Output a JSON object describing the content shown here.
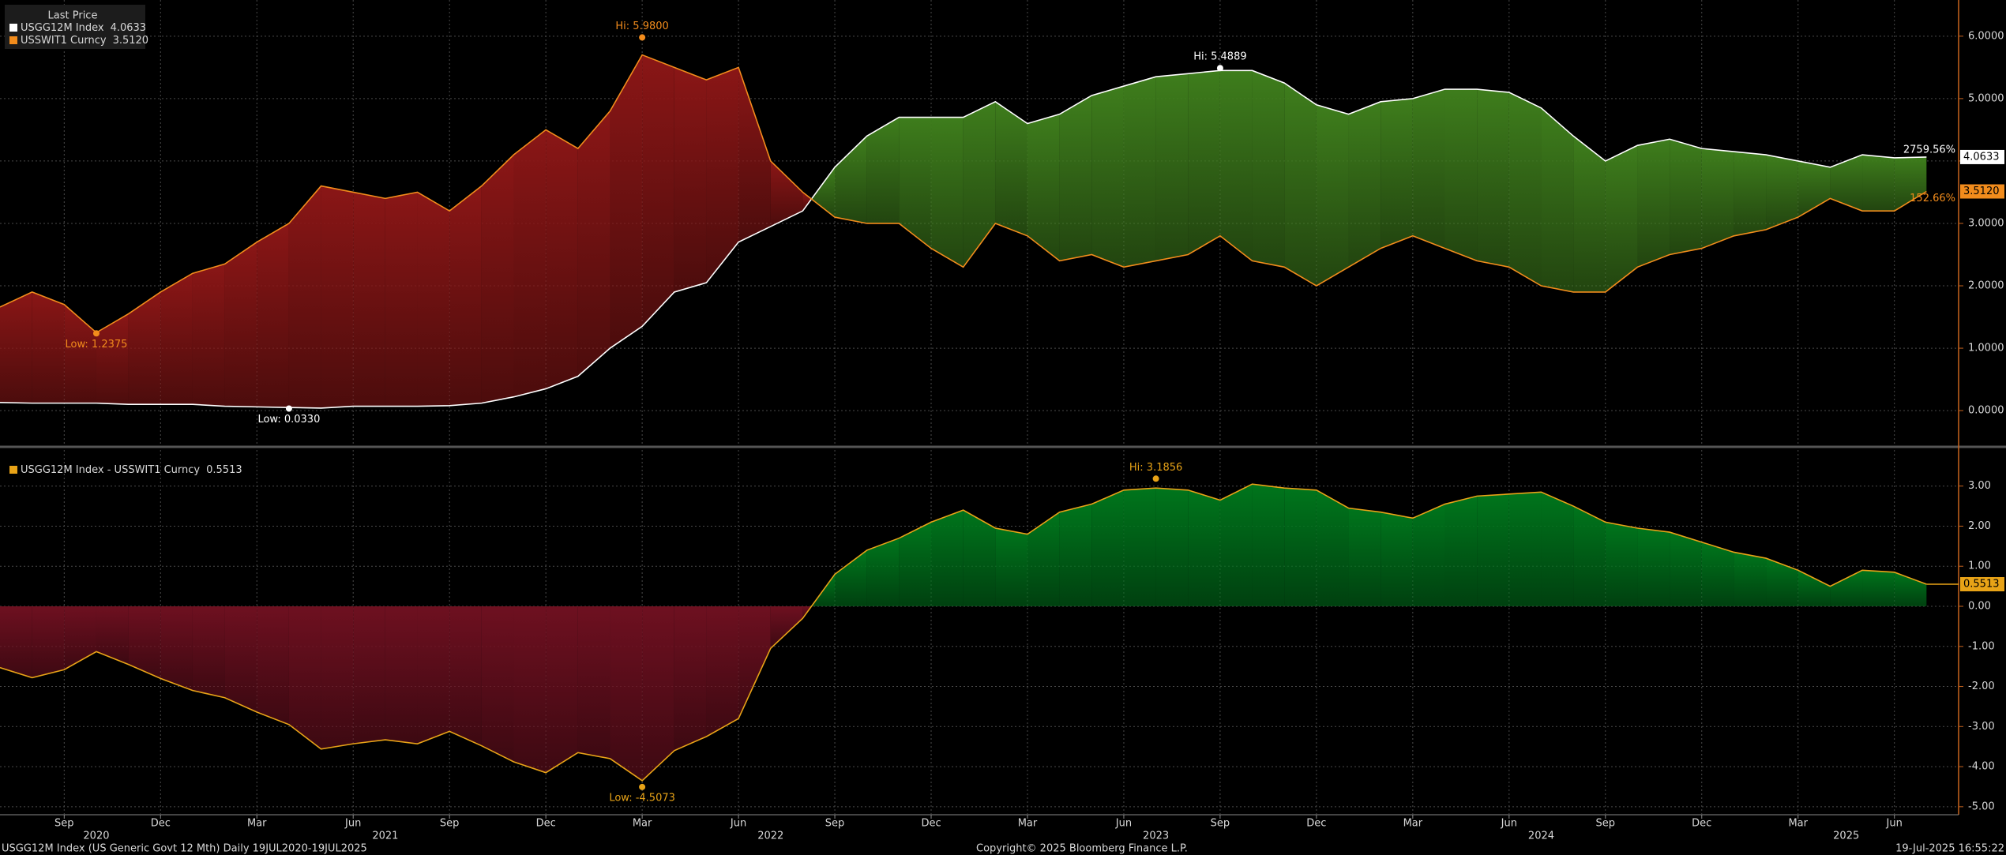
{
  "chart_data": [
    {
      "type": "line",
      "fill_between": true,
      "positive_color": "#3e7d1c",
      "negative_color": "#8a1616",
      "legend_title": "Last Price",
      "x": [
        "2020-07",
        "2020-08",
        "2020-09",
        "2020-10",
        "2020-11",
        "2020-12",
        "2021-01",
        "2021-02",
        "2021-03",
        "2021-04",
        "2021-05",
        "2021-06",
        "2021-07",
        "2021-08",
        "2021-09",
        "2021-10",
        "2021-11",
        "2021-12",
        "2022-01",
        "2022-02",
        "2022-03",
        "2022-04",
        "2022-05",
        "2022-06",
        "2022-07",
        "2022-08",
        "2022-09",
        "2022-10",
        "2022-11",
        "2022-12",
        "2023-01",
        "2023-02",
        "2023-03",
        "2023-04",
        "2023-05",
        "2023-06",
        "2023-07",
        "2023-08",
        "2023-09",
        "2023-10",
        "2023-11",
        "2023-12",
        "2024-01",
        "2024-02",
        "2024-03",
        "2024-04",
        "2024-05",
        "2024-06",
        "2024-07",
        "2024-08",
        "2024-09",
        "2024-10",
        "2024-11",
        "2024-12",
        "2025-01",
        "2025-02",
        "2025-03",
        "2025-04",
        "2025-05",
        "2025-06",
        "2025-07"
      ],
      "series": [
        {
          "name": "USGG12M Index",
          "color": "#ffffff",
          "last_label": "4.0633",
          "change_label": "2759.56%",
          "values": [
            0.13,
            0.12,
            0.12,
            0.12,
            0.1,
            0.1,
            0.1,
            0.07,
            0.06,
            0.05,
            0.04,
            0.07,
            0.07,
            0.07,
            0.08,
            0.12,
            0.22,
            0.35,
            0.55,
            1.0,
            1.35,
            1.9,
            2.05,
            2.7,
            2.95,
            3.2,
            3.9,
            4.4,
            4.7,
            4.7,
            4.7,
            4.95,
            4.6,
            4.75,
            5.05,
            5.2,
            5.35,
            5.4,
            5.45,
            5.45,
            5.25,
            4.9,
            4.75,
            4.95,
            5.0,
            5.15,
            5.15,
            5.1,
            4.85,
            4.4,
            4.0,
            4.25,
            4.35,
            4.2,
            4.15,
            4.1,
            4.0,
            3.9,
            4.1,
            4.05,
            4.0633
          ]
        },
        {
          "name": "USSWIT1 Curncy",
          "color": "#f28c1c",
          "last_label": "3.5120",
          "change_label": "152.66%",
          "values": [
            1.66,
            1.9,
            1.7,
            1.25,
            1.55,
            1.9,
            2.2,
            2.35,
            2.7,
            3.0,
            3.6,
            3.5,
            3.4,
            3.5,
            3.2,
            3.6,
            4.1,
            4.5,
            4.2,
            4.8,
            5.7,
            5.5,
            5.3,
            5.5,
            4.0,
            3.5,
            3.1,
            3.0,
            3.0,
            2.6,
            2.3,
            3.0,
            2.8,
            2.4,
            2.5,
            2.3,
            2.4,
            2.5,
            2.8,
            2.4,
            2.3,
            2.0,
            2.3,
            2.6,
            2.8,
            2.6,
            2.4,
            2.3,
            2.0,
            1.9,
            1.9,
            2.3,
            2.5,
            2.6,
            2.8,
            2.9,
            3.1,
            3.4,
            3.2,
            3.2,
            3.512
          ]
        }
      ],
      "annotations": [
        {
          "series": 1,
          "x": "2022-03",
          "value": 5.98,
          "label": "Hi: 5.9800"
        },
        {
          "series": 1,
          "x": "2020-10",
          "value": 1.2375,
          "label": "Low: 1.2375"
        },
        {
          "series": 0,
          "x": "2023-09",
          "value": 5.4889,
          "label": "Hi: 5.4889"
        },
        {
          "series": 0,
          "x": "2021-04",
          "value": 0.033,
          "label": "Low: 0.0330"
        }
      ],
      "ylim": [
        -0.53,
        6.58
      ],
      "yticks": [
        {
          "value": 0,
          "label": "0.0000"
        },
        {
          "value": 1,
          "label": "1.0000"
        },
        {
          "value": 2,
          "label": "2.0000"
        },
        {
          "value": 3,
          "label": "3.0000"
        },
        {
          "value": 4,
          "label": "4.0000"
        },
        {
          "value": 5,
          "label": "5.0000"
        },
        {
          "value": 6,
          "label": "6.0000"
        }
      ],
      "grid": true
    },
    {
      "type": "area",
      "positive_color": "#00751c",
      "negative_color": "#6e1020",
      "x": [
        "2020-07",
        "2020-08",
        "2020-09",
        "2020-10",
        "2020-11",
        "2020-12",
        "2021-01",
        "2021-02",
        "2021-03",
        "2021-04",
        "2021-05",
        "2021-06",
        "2021-07",
        "2021-08",
        "2021-09",
        "2021-10",
        "2021-11",
        "2021-12",
        "2022-01",
        "2022-02",
        "2022-03",
        "2022-04",
        "2022-05",
        "2022-06",
        "2022-07",
        "2022-08",
        "2022-09",
        "2022-10",
        "2022-11",
        "2022-12",
        "2023-01",
        "2023-02",
        "2023-03",
        "2023-04",
        "2023-05",
        "2023-06",
        "2023-07",
        "2023-08",
        "2023-09",
        "2023-10",
        "2023-11",
        "2023-12",
        "2024-01",
        "2024-02",
        "2024-03",
        "2024-04",
        "2024-05",
        "2024-06",
        "2024-07",
        "2024-08",
        "2024-09",
        "2024-10",
        "2024-11",
        "2024-12",
        "2025-01",
        "2025-02",
        "2025-03",
        "2025-04",
        "2025-05",
        "2025-06",
        "2025-07"
      ],
      "series": [
        {
          "name": "USGG12M Index - USSWIT1 Curncy",
          "color": "#e8a317",
          "last_label": "0.5513",
          "values": [
            -1.53,
            -1.78,
            -1.58,
            -1.13,
            -1.45,
            -1.8,
            -2.1,
            -2.28,
            -2.64,
            -2.95,
            -3.56,
            -3.43,
            -3.33,
            -3.43,
            -3.12,
            -3.48,
            -3.88,
            -4.15,
            -3.65,
            -3.8,
            -4.35,
            -3.6,
            -3.25,
            -2.8,
            -1.05,
            -0.3,
            0.8,
            1.4,
            1.7,
            2.1,
            2.4,
            1.95,
            1.8,
            2.35,
            2.55,
            2.9,
            2.95,
            2.9,
            2.65,
            3.05,
            2.95,
            2.9,
            2.45,
            2.35,
            2.2,
            2.55,
            2.75,
            2.8,
            2.85,
            2.5,
            2.1,
            1.95,
            1.85,
            1.6,
            1.35,
            1.2,
            0.9,
            0.5,
            0.9,
            0.85,
            0.5513
          ]
        }
      ],
      "annotations": [
        {
          "series": 0,
          "x": "2023-07",
          "value": 3.1856,
          "label": "Hi: 3.1856"
        },
        {
          "series": 0,
          "x": "2022-03",
          "value": -4.5073,
          "label": "Low: -4.5073"
        }
      ],
      "ylim": [
        -5.2,
        3.9
      ],
      "yticks": [
        {
          "value": -5,
          "label": "-5.00"
        },
        {
          "value": -4,
          "label": "-4.00"
        },
        {
          "value": -3,
          "label": "-3.00"
        },
        {
          "value": -2,
          "label": "-2.00"
        },
        {
          "value": -1,
          "label": "-1.00"
        },
        {
          "value": 0,
          "label": "0.00"
        },
        {
          "value": 1,
          "label": "1.00"
        },
        {
          "value": 2,
          "label": "2.00"
        },
        {
          "value": 3,
          "label": "3.00"
        }
      ],
      "xlim": [
        "2020-07",
        "2025-08"
      ],
      "xticks": [
        {
          "value": "2020-09",
          "label": "Sep"
        },
        {
          "value": "2020-12",
          "label": "Dec"
        },
        {
          "value": "2021-03",
          "label": "Mar"
        },
        {
          "value": "2021-06",
          "label": "Jun"
        },
        {
          "value": "2021-09",
          "label": "Sep"
        },
        {
          "value": "2021-12",
          "label": "Dec"
        },
        {
          "value": "2022-03",
          "label": "Mar"
        },
        {
          "value": "2022-06",
          "label": "Jun"
        },
        {
          "value": "2022-09",
          "label": "Sep"
        },
        {
          "value": "2022-12",
          "label": "Dec"
        },
        {
          "value": "2023-03",
          "label": "Mar"
        },
        {
          "value": "2023-06",
          "label": "Jun"
        },
        {
          "value": "2023-09",
          "label": "Sep"
        },
        {
          "value": "2023-12",
          "label": "Dec"
        },
        {
          "value": "2024-03",
          "label": "Mar"
        },
        {
          "value": "2024-06",
          "label": "Jun"
        },
        {
          "value": "2024-09",
          "label": "Sep"
        },
        {
          "value": "2024-12",
          "label": "Dec"
        },
        {
          "value": "2025-03",
          "label": "Mar"
        },
        {
          "value": "2025-06",
          "label": "Jun"
        }
      ],
      "year_labels": [
        "2020",
        "2021",
        "2022",
        "2023",
        "2024",
        "2025"
      ],
      "grid": true
    }
  ],
  "footer": {
    "left": "USGG12M Index (US Generic Govt 12 Mth)  Daily 19JUL2020-19JUL2025",
    "center": "Copyright© 2025 Bloomberg Finance L.P.",
    "right": "19-Jul-2025 16:55:22"
  }
}
